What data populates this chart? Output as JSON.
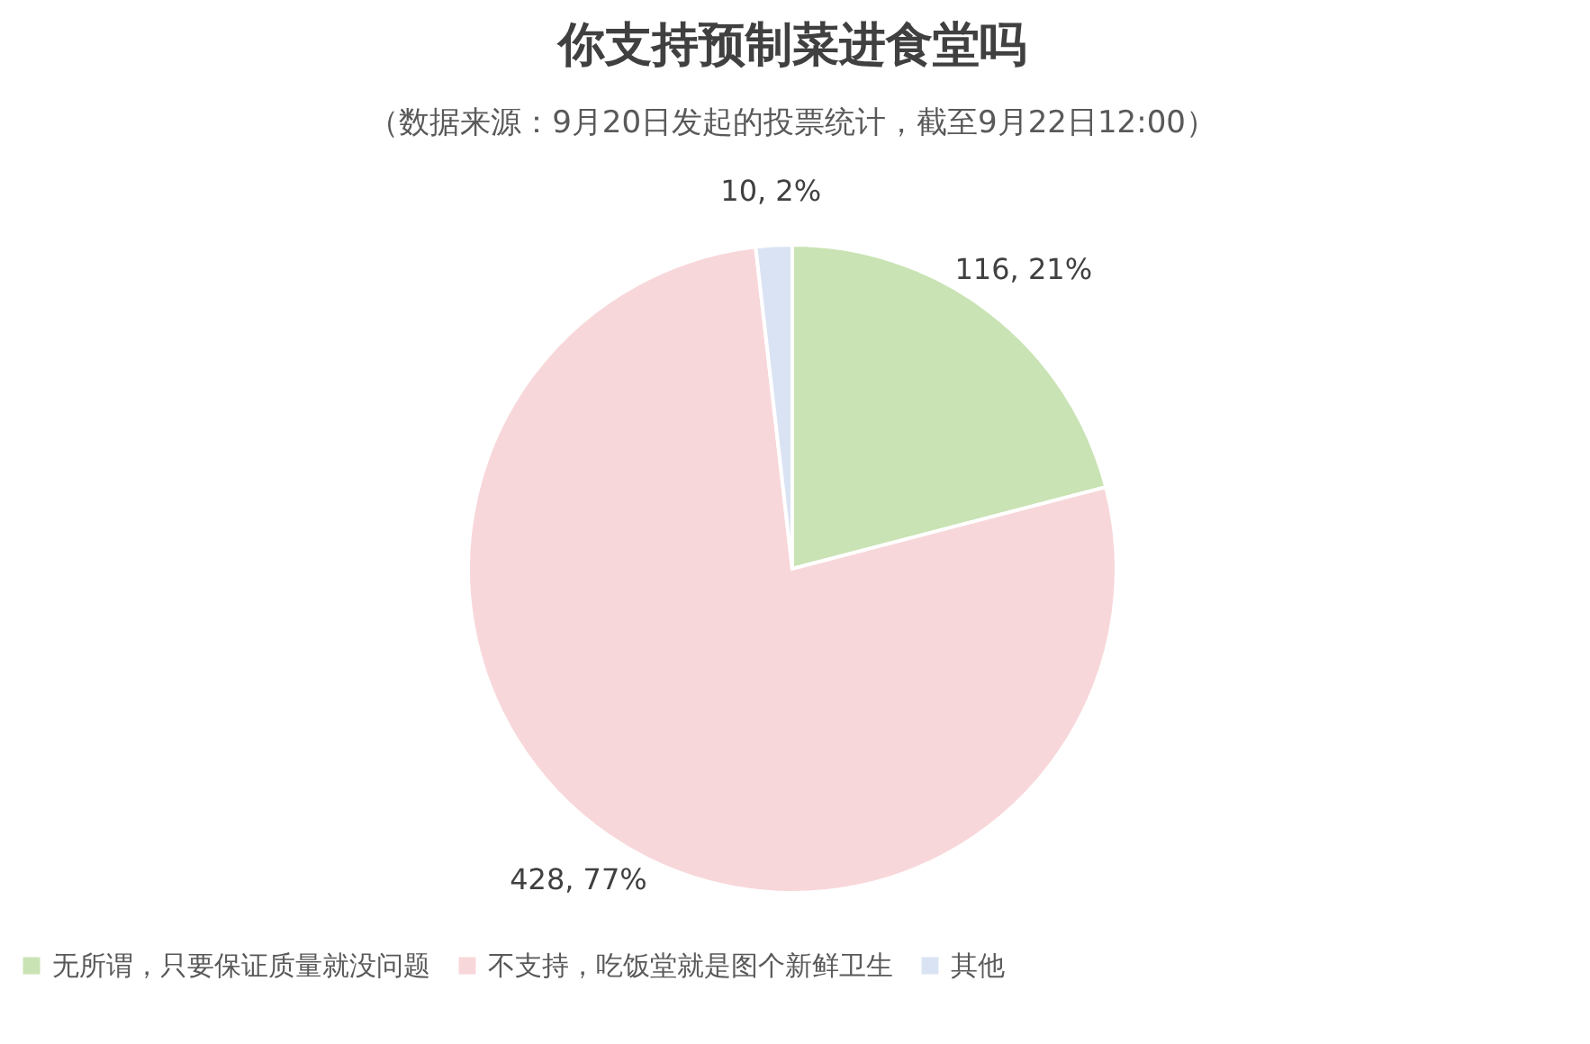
{
  "chart_data": {
    "type": "pie",
    "title": "你支持预制菜进食堂吗",
    "subtitle": "（数据来源：9月20日发起的投票统计，截至9月22日12:00）",
    "categories": [
      "无所谓，只要保证质量就没问题",
      "不支持，吃饭堂就是图个新鲜卫生",
      "其他"
    ],
    "values": [
      116,
      428,
      10
    ],
    "colors": [
      "#c9e3b4",
      "#f8d7da",
      "#dae3f3"
    ],
    "value_labels": [
      "116, 21%",
      "428, 77%",
      "10, 2%"
    ],
    "legend": "bottom"
  }
}
